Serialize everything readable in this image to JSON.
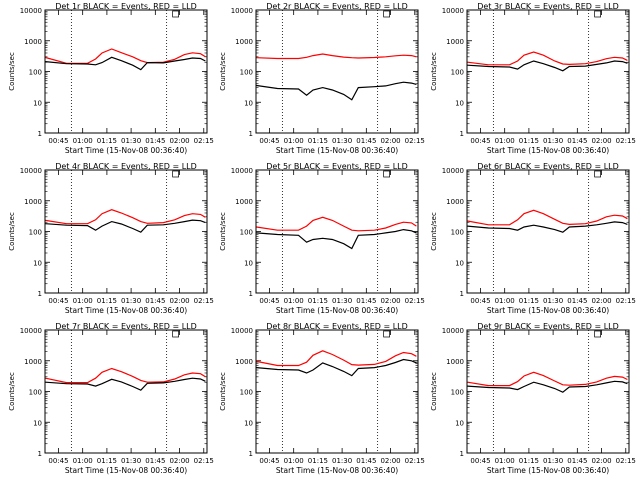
{
  "figure": {
    "xlabel": "Start Time (15-Nov-08 00:36:40)",
    "ylabel": "Counts/sec",
    "x_ticks": [
      "00:45",
      "01:00",
      "01:15",
      "01:30",
      "01:45",
      "02:00",
      "02:15"
    ],
    "y_ticks": [
      "1",
      "10",
      "100",
      "1000",
      "10000"
    ],
    "series_colors": {
      "events": "#000000",
      "lld": "#ff0000"
    },
    "small_box_label": "C"
  },
  "chart_data": [
    {
      "type": "line",
      "title": "Det 1r BLACK = Events, RED = LLD",
      "xlim": [
        "00:36:40",
        "02:17:00"
      ],
      "ylim": [
        1,
        10000
      ],
      "yscale": "log",
      "x": [
        "00:37",
        "00:50",
        "01:03",
        "01:08",
        "01:12",
        "01:18",
        "01:24",
        "01:31",
        "01:36",
        "01:40",
        "01:50",
        "01:57",
        "02:03",
        "02:08",
        "02:13",
        "02:16"
      ],
      "vlines": [
        "00:53",
        "01:52"
      ],
      "series": [
        {
          "values": [
            285,
            185,
            185,
            255,
            400,
            540,
            410,
            300,
            225,
            195,
            200,
            250,
            355,
            405,
            380,
            300
          ]
        },
        {
          "values": [
            210,
            180,
            175,
            165,
            195,
            290,
            225,
            160,
            115,
            195,
            190,
            220,
            245,
            275,
            265,
            220
          ]
        }
      ]
    },
    {
      "type": "line",
      "title": "Det 2r BLACK = Events, RED = LLD",
      "xlim": [
        "00:36:40",
        "02:17:00"
      ],
      "ylim": [
        1,
        10000
      ],
      "yscale": "log",
      "x": [
        "00:37",
        "00:50",
        "01:03",
        "01:08",
        "01:12",
        "01:18",
        "01:24",
        "01:31",
        "01:36",
        "01:40",
        "01:50",
        "01:57",
        "02:03",
        "02:08",
        "02:13",
        "02:16"
      ],
      "vlines": [
        "00:53",
        "01:52"
      ],
      "series": [
        {
          "values": [
            280,
            265,
            265,
            290,
            330,
            370,
            330,
            295,
            280,
            275,
            285,
            300,
            325,
            340,
            330,
            300
          ]
        },
        {
          "values": [
            35,
            28,
            27,
            17,
            25,
            30,
            25,
            18,
            12,
            30,
            32,
            34,
            40,
            45,
            42,
            38
          ]
        }
      ]
    },
    {
      "type": "line",
      "title": "Det 3r BLACK = Events, RED = LLD",
      "xlim": [
        "00:36:40",
        "02:17:00"
      ],
      "ylim": [
        1,
        10000
      ],
      "yscale": "log",
      "x": [
        "00:37",
        "00:50",
        "01:03",
        "01:08",
        "01:12",
        "01:18",
        "01:24",
        "01:31",
        "01:36",
        "01:40",
        "01:50",
        "01:57",
        "02:03",
        "02:08",
        "02:13",
        "02:16"
      ],
      "vlines": [
        "00:53",
        "01:52"
      ],
      "series": [
        {
          "values": [
            200,
            165,
            165,
            220,
            340,
            430,
            340,
            220,
            175,
            170,
            180,
            210,
            260,
            290,
            275,
            230
          ]
        },
        {
          "values": [
            160,
            145,
            140,
            120,
            165,
            220,
            180,
            135,
            105,
            145,
            150,
            170,
            190,
            220,
            210,
            185
          ]
        }
      ]
    },
    {
      "type": "line",
      "title": "Det 4r BLACK = Events, RED = LLD",
      "xlim": [
        "00:36:40",
        "02:17:00"
      ],
      "ylim": [
        1,
        10000
      ],
      "yscale": "log",
      "x": [
        "00:37",
        "00:50",
        "01:03",
        "01:08",
        "01:12",
        "01:18",
        "01:24",
        "01:31",
        "01:36",
        "01:40",
        "01:50",
        "01:57",
        "02:03",
        "02:08",
        "02:13",
        "02:16"
      ],
      "vlines": [
        "00:53",
        "01:52"
      ],
      "series": [
        {
          "values": [
            230,
            180,
            180,
            240,
            380,
            510,
            400,
            280,
            210,
            185,
            195,
            240,
            330,
            380,
            360,
            290
          ]
        },
        {
          "values": [
            180,
            160,
            155,
            110,
            150,
            210,
            175,
            125,
            95,
            160,
            165,
            185,
            210,
            235,
            225,
            195
          ]
        }
      ]
    },
    {
      "type": "line",
      "title": "Det 5r BLACK = Events, RED = LLD",
      "xlim": [
        "00:36:40",
        "02:17:00"
      ],
      "ylim": [
        1,
        10000
      ],
      "yscale": "log",
      "x": [
        "00:37",
        "00:50",
        "01:03",
        "01:08",
        "01:12",
        "01:18",
        "01:24",
        "01:31",
        "01:36",
        "01:40",
        "01:50",
        "01:57",
        "02:03",
        "02:08",
        "02:13",
        "02:16"
      ],
      "vlines": [
        "00:53",
        "01:52"
      ],
      "series": [
        {
          "values": [
            140,
            110,
            110,
            150,
            230,
            290,
            230,
            150,
            110,
            105,
            110,
            130,
            170,
            200,
            190,
            150
          ]
        },
        {
          "values": [
            90,
            80,
            75,
            45,
            55,
            60,
            55,
            40,
            28,
            75,
            80,
            90,
            100,
            115,
            105,
            90
          ]
        }
      ]
    },
    {
      "type": "line",
      "title": "Det 6r BLACK = Events, RED = LLD",
      "xlim": [
        "00:36:40",
        "02:17:00"
      ],
      "ylim": [
        1,
        10000
      ],
      "yscale": "log",
      "x": [
        "00:37",
        "00:50",
        "01:03",
        "01:08",
        "01:12",
        "01:18",
        "01:24",
        "01:31",
        "01:36",
        "01:40",
        "01:50",
        "01:57",
        "02:03",
        "02:08",
        "02:13",
        "02:16"
      ],
      "vlines": [
        "00:53",
        "01:52"
      ],
      "series": [
        {
          "values": [
            220,
            165,
            165,
            240,
            380,
            490,
            380,
            250,
            185,
            170,
            180,
            220,
            300,
            340,
            320,
            260
          ]
        },
        {
          "values": [
            150,
            130,
            125,
            110,
            140,
            160,
            140,
            115,
            95,
            140,
            150,
            165,
            185,
            205,
            195,
            170
          ]
        }
      ]
    },
    {
      "type": "line",
      "title": "Det 7r BLACK = Events, RED = LLD",
      "xlim": [
        "00:36:40",
        "02:17:00"
      ],
      "ylim": [
        1,
        10000
      ],
      "yscale": "log",
      "x": [
        "00:37",
        "00:50",
        "01:03",
        "01:08",
        "01:12",
        "01:18",
        "01:24",
        "01:31",
        "01:36",
        "01:40",
        "01:50",
        "01:57",
        "02:03",
        "02:08",
        "02:13",
        "02:16"
      ],
      "vlines": [
        "00:53",
        "01:52"
      ],
      "series": [
        {
          "values": [
            270,
            195,
            195,
            270,
            420,
            560,
            440,
            310,
            230,
            200,
            205,
            255,
            350,
            400,
            380,
            300
          ]
        },
        {
          "values": [
            200,
            180,
            175,
            150,
            180,
            250,
            205,
            145,
            110,
            185,
            190,
            215,
            245,
            270,
            255,
            215
          ]
        }
      ]
    },
    {
      "type": "line",
      "title": "Det 8r BLACK = Events, RED = LLD",
      "xlim": [
        "00:36:40",
        "02:17:00"
      ],
      "ylim": [
        1,
        10000
      ],
      "yscale": "log",
      "x": [
        "00:37",
        "00:50",
        "01:03",
        "01:08",
        "01:12",
        "01:18",
        "01:24",
        "01:31",
        "01:36",
        "01:40",
        "01:50",
        "01:57",
        "02:03",
        "02:08",
        "02:13",
        "02:16"
      ],
      "vlines": [
        "00:53",
        "01:52"
      ],
      "series": [
        {
          "values": [
            950,
            700,
            700,
            900,
            1500,
            2100,
            1600,
            1050,
            750,
            720,
            760,
            950,
            1450,
            1850,
            1700,
            1400
          ]
        },
        {
          "values": [
            600,
            520,
            500,
            400,
            500,
            850,
            650,
            450,
            330,
            560,
            600,
            700,
            880,
            1100,
            1000,
            850
          ]
        }
      ]
    },
    {
      "type": "line",
      "title": "Det 9r BLACK = Events, RED = LLD",
      "xlim": [
        "00:36:40",
        "02:17:00"
      ],
      "ylim": [
        1,
        10000
      ],
      "yscale": "log",
      "x": [
        "00:37",
        "00:50",
        "01:03",
        "01:08",
        "01:12",
        "01:18",
        "01:24",
        "01:31",
        "01:36",
        "01:40",
        "01:50",
        "01:57",
        "02:03",
        "02:08",
        "02:13",
        "02:16"
      ],
      "vlines": [
        "00:53",
        "01:52"
      ],
      "series": [
        {
          "values": [
            200,
            155,
            155,
            210,
            320,
            420,
            330,
            220,
            165,
            160,
            170,
            205,
            270,
            310,
            295,
            245
          ]
        },
        {
          "values": [
            150,
            135,
            130,
            115,
            145,
            200,
            165,
            125,
            95,
            140,
            145,
            165,
            190,
            215,
            205,
            180
          ]
        }
      ]
    }
  ]
}
